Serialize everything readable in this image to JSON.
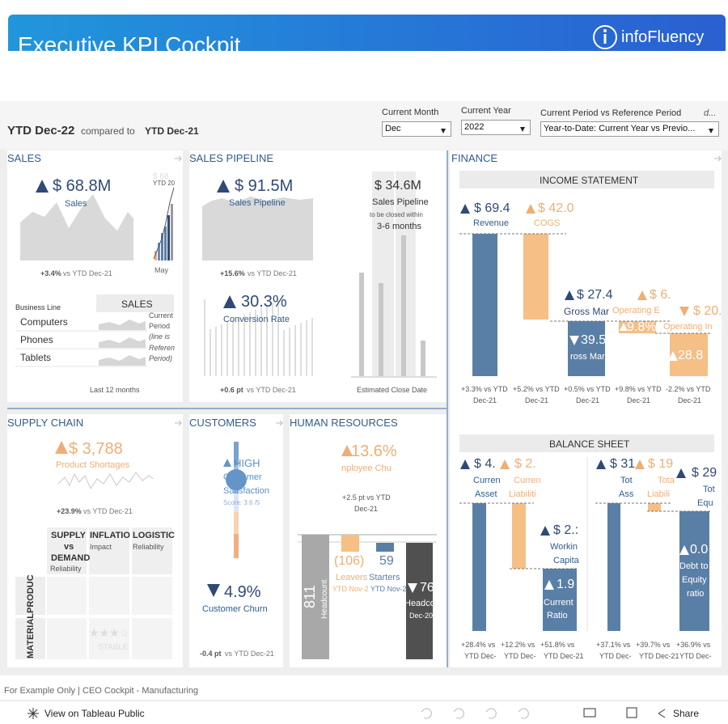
{
  "header": {
    "title": "Executive KPI Cockpit",
    "brand": "infoFluency"
  },
  "period": {
    "current": "YTD Dec-22",
    "compared": "compared to",
    "reference": "YTD Dec-21"
  },
  "filters": [
    {
      "label": "Current Month",
      "value": "Dec"
    },
    {
      "label": "Current Year",
      "value": "2022"
    },
    {
      "label": "Current Period vs Reference Period",
      "value": "Year-to-Date: Current Year vs Previo...",
      "hint": "d..."
    }
  ],
  "sales": {
    "title": "SALES",
    "kpi": "$ 68.8M",
    "kpi_label": "Sales",
    "mini_value": "$ 68.",
    "mini_label": "YTD 20",
    "month": "May",
    "change": "+3.4%",
    "change_ref": "vs YTD Dec-21",
    "table_header": "Business Line",
    "column": "SALES",
    "rows": [
      "Computers",
      "Phones",
      "Tablets"
    ],
    "legend": [
      "Current",
      "Period",
      "(line is",
      "Referen",
      "Period)"
    ],
    "footer": "Last 12 months"
  },
  "pipeline": {
    "title": "SALES PIPELINE",
    "kpi": "$ 91.5M",
    "kpi_label": "Sales Pipeline",
    "change": "+15.6%",
    "change_ref": "vs YTD Dec-21",
    "closing_value": "$ 34.6M",
    "closing_label": "Sales Pipeline",
    "closing_note": "to be closed within",
    "closing_window": "3-6 months",
    "closing_axis": "Estimated Close Date",
    "conversion": "30.3%",
    "conversion_label": "Conversion Rate",
    "conversion_change": "+0.6 pt",
    "conversion_ref": "vs YTD Dec-21"
  },
  "finance": {
    "title": "FINANCE",
    "income_statement": {
      "title": "INCOME STATEMENT",
      "items": [
        {
          "value": "$ 69.4",
          "label": "Revenue",
          "footer": [
            "+3.3% vs YTD",
            "Dec-21"
          ]
        },
        {
          "value": "$ 42.0",
          "label": "COGS",
          "footer": [
            "+5.2% vs YTD",
            "Dec-21"
          ]
        },
        {
          "value": "$ 27.4",
          "label": "Gross Mar",
          "pct": "39.5",
          "pct_label": "ross Marg",
          "footer": [
            "+0.5% vs YTD",
            "Dec-21"
          ]
        },
        {
          "value": "$ 6.",
          "label": "Operating E",
          "pct": "9.8%",
          "footer": [
            "+9.8% vs YTD",
            "Dec-21"
          ]
        },
        {
          "value": "$ 20.",
          "label": "Operating In",
          "pct": "28.8",
          "footer": [
            "-2.2% vs YTD",
            "Dec-21"
          ]
        }
      ]
    },
    "balance_sheet": {
      "title": "BALANCE SHEET",
      "items": [
        {
          "value": "$ 4.",
          "label": [
            "Curren",
            "Asset"
          ],
          "footer": [
            "+28.4% vs",
            "YTD Dec-"
          ]
        },
        {
          "value": "$ 2.",
          "label": [
            "Curren",
            "Liabiliti"
          ],
          "footer": [
            "+12.2% vs",
            "YTD Dec-"
          ]
        },
        {
          "value": "$ 2.:",
          "label": [
            "Workin",
            "Capita"
          ],
          "footer": [
            "+51.8% vs",
            "YTD Dec-21"
          ]
        },
        {
          "value": "1.9",
          "label": [
            "Current",
            "Ratio"
          ]
        },
        {
          "value": "$ 31",
          "label": [
            "Tot",
            "Ass"
          ],
          "footer": [
            "+37.1% vs",
            "YTD Dec-"
          ]
        },
        {
          "value": "$ 19",
          "label": [
            "Tota",
            "Liabili"
          ],
          "footer": [
            "+39.7% vs",
            "YTD Dec-21"
          ]
        },
        {
          "value": "$ 29",
          "label": [
            "Tot",
            "Equ"
          ],
          "footer": [
            "+36.9% vs",
            "YTD Dec-"
          ]
        },
        {
          "value": "0.0",
          "label": [
            "Debt to",
            "Equity",
            "ratio"
          ]
        }
      ]
    }
  },
  "supply_chain": {
    "title": "SUPPLY CHAIN",
    "kpi": "$ 3,788",
    "kpi_label": "Product Shortages",
    "change": "+23.9%",
    "change_ref": "vs YTD Dec-21",
    "columns": [
      [
        "SUPPLY",
        "vs",
        "DEMAND",
        "Reliability"
      ],
      [
        "INFLATIO",
        "Impact"
      ],
      [
        "LOGISTIC",
        "Reliability"
      ]
    ],
    "rows": [
      "PRODUC",
      "MATERIAL"
    ],
    "rating": "★★★☆",
    "status": "STABLE"
  },
  "customers": {
    "title": "CUSTOMERS",
    "satisfaction": "HIGH",
    "satisfaction_label": [
      "Customer",
      "Satisfaction"
    ],
    "score": "Score: 3.6 /5",
    "churn": "4.9%",
    "churn_label": "Customer Churn",
    "churn_change": "-0.4 pt",
    "churn_ref": "vs YTD Dec-21"
  },
  "hr": {
    "title": "HUMAN RESOURCES",
    "kpi": "13.6%",
    "kpi_label": "nployee Chu",
    "change": [
      "+2.5 pt vs YTD",
      "Dec-21"
    ],
    "start": {
      "value": "811",
      "label": "Headcount"
    },
    "leavers": {
      "value": "(106)",
      "label": "Leavers",
      "period": "YTD Nov-2"
    },
    "starters": {
      "value": "59",
      "label": "Starters",
      "period": "YTD Nov-2"
    },
    "end": {
      "value": "76",
      "label": "Headco",
      "period": "Dec-20"
    }
  },
  "footer": {
    "note": "For Example Only | CEO Cockpit - Manufacturing",
    "view": "View on Tableau Public",
    "share": "Share"
  }
}
